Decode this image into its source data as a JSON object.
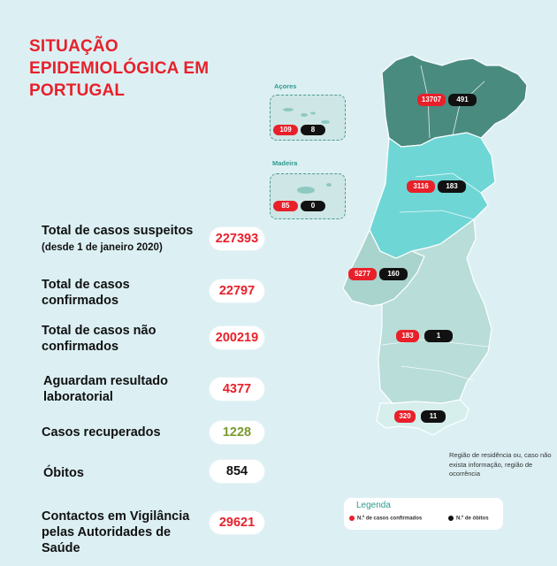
{
  "title": "SITUAÇÃO EPIDEMIOLÓGICA EM PORTUGAL",
  "stats": [
    {
      "label": "Total de casos suspeitos",
      "sublabel": "(desde 1 de janeiro 2020)",
      "value": "227393",
      "color": "#e8202a"
    },
    {
      "label": "Total de casos confirmados",
      "value": "22797",
      "color": "#e8202a"
    },
    {
      "label": "Total de casos não confirmados",
      "value": "200219",
      "color": "#e8202a"
    },
    {
      "label": "Aguardam resultado laboratorial",
      "value": "4377",
      "color": "#e8202a"
    },
    {
      "label": "Casos recuperados",
      "value": "1228",
      "color": "#7a9a2e"
    },
    {
      "label": "Óbitos",
      "value": "854",
      "color": "#111111"
    },
    {
      "label": "Contactos em Vigilância pelas Autoridades de Saúde",
      "value": "29621",
      "color": "#e8202a"
    }
  ],
  "islands": {
    "acores": {
      "label": "Açores",
      "confirmed": "109",
      "deaths": "8"
    },
    "madeira": {
      "label": "Madeira",
      "confirmed": "85",
      "deaths": "0"
    }
  },
  "regions": {
    "norte": {
      "confirmed": "13707",
      "deaths": "491",
      "color": "#4a8b80"
    },
    "centro": {
      "confirmed": "3116",
      "deaths": "183",
      "color": "#6fd6d6"
    },
    "lisboa": {
      "confirmed": "5277",
      "deaths": "160",
      "color": "#a9d4ce"
    },
    "alentejo": {
      "confirmed": "183",
      "deaths": "1",
      "color": "#b9ddd9"
    },
    "algarve": {
      "confirmed": "320",
      "deaths": "11",
      "color": "#d6eeec"
    }
  },
  "note": "Região de residência ou, caso não exista informação, região de ocorrência",
  "legend": {
    "title": "Legenda",
    "confirmed": "N.º de casos confirmados",
    "deaths": "N.º de óbitos"
  }
}
